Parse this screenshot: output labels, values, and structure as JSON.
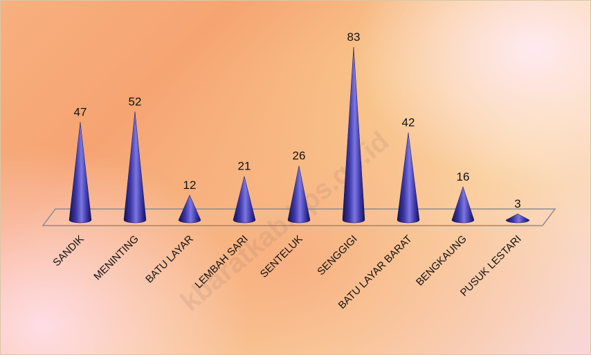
{
  "chart_data": {
    "type": "bar",
    "bar_shape": "cone",
    "categories": [
      "SANDIK",
      "MENINTING",
      "BATU LAYAR",
      "LEMBAH SARI",
      "SENTELUK",
      "SENGGIGI",
      "BATU LAYAR BARAT",
      "BENGKAUNG",
      "PUSUK LESTARI"
    ],
    "values": [
      47,
      52,
      12,
      21,
      26,
      83,
      42,
      16,
      3
    ],
    "title": "",
    "xlabel": "",
    "ylabel": "",
    "ylim": [
      0,
      83
    ],
    "grid": false,
    "legend": "none",
    "colors": {
      "bar": "#3b36a6",
      "bar_light": "#7b76e0",
      "bar_dark": "#15124f"
    }
  },
  "watermark": "kbaratkab.bps.go.id"
}
